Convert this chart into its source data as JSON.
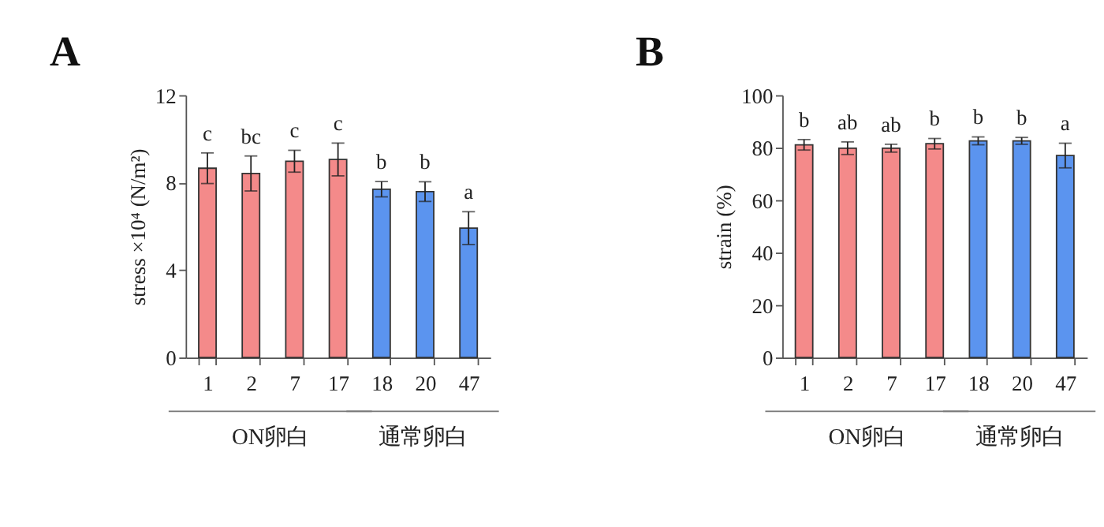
{
  "chart_data": [
    {
      "type": "bar",
      "title": "A",
      "ylabel": "stress ×10⁴ (N/m²)",
      "categories": [
        "1",
        "2",
        "7",
        "17",
        "18",
        "20",
        "47"
      ],
      "values": [
        8.66,
        8.42,
        8.98,
        9.06,
        7.7,
        7.59,
        5.92
      ],
      "errors": [
        0.7,
        0.8,
        0.5,
        0.75,
        0.35,
        0.45,
        0.75
      ],
      "colors": [
        "#f48a8a",
        "#f48a8a",
        "#f48a8a",
        "#f48a8a",
        "#5b94ef",
        "#5b94ef",
        "#5b94ef"
      ],
      "ylim": [
        0,
        12
      ],
      "yticks": [
        0,
        4,
        8,
        12
      ],
      "grid": false,
      "annotations": [
        "c",
        "bc",
        "c",
        "c",
        "b",
        "b",
        "a",
        "ON卵白",
        "通常卵白"
      ]
    },
    {
      "type": "bar",
      "title": "B",
      "ylabel": "strain (%)",
      "categories": [
        "1",
        "2",
        "7",
        "17",
        "18",
        "20",
        "47"
      ],
      "values": [
        81.1,
        79.8,
        79.8,
        81.5,
        82.6,
        82.6,
        77
      ],
      "errors": [
        2,
        2.4,
        1.5,
        2,
        1.5,
        1.3,
        4.7
      ],
      "colors": [
        "#f48a8a",
        "#f48a8a",
        "#f48a8a",
        "#f48a8a",
        "#5b94ef",
        "#5b94ef",
        "#5b94ef"
      ],
      "ylim": [
        0,
        100
      ],
      "yticks": [
        0,
        20,
        40,
        60,
        80,
        100
      ],
      "grid": false,
      "annotations": [
        "b",
        "ab",
        "ab",
        "b",
        "b",
        "b",
        "a",
        "ON卵白",
        "通常卵白"
      ]
    }
  ]
}
